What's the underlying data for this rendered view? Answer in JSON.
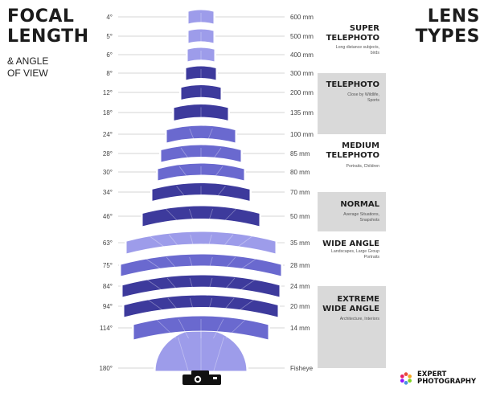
{
  "header": {
    "title_left_line1": "FOCAL",
    "title_left_line2": "LENGTH",
    "subtitle_line1": "& ANGLE",
    "subtitle_line2": "OF VIEW",
    "title_right_line1": "LENS",
    "title_right_line2": "TYPES"
  },
  "rows": [
    {
      "angle": "4°",
      "mm": "600 mm",
      "deg": 4
    },
    {
      "angle": "5°",
      "mm": "500 mm",
      "deg": 5
    },
    {
      "angle": "6°",
      "mm": "400 mm",
      "deg": 6
    },
    {
      "angle": "8°",
      "mm": "300 mm",
      "deg": 8
    },
    {
      "angle": "12°",
      "mm": "200 mm",
      "deg": 12
    },
    {
      "angle": "18°",
      "mm": "135 mm",
      "deg": 18
    },
    {
      "angle": "24°",
      "mm": "100 mm",
      "deg": 24
    },
    {
      "angle": "28°",
      "mm": "85 mm",
      "deg": 28
    },
    {
      "angle": "30°",
      "mm": "80 mm",
      "deg": 30
    },
    {
      "angle": "34°",
      "mm": "70 mm",
      "deg": 34
    },
    {
      "angle": "46°",
      "mm": "50 mm",
      "deg": 46
    },
    {
      "angle": "63°",
      "mm": "35 mm",
      "deg": 63
    },
    {
      "angle": "75°",
      "mm": "28 mm",
      "deg": 75
    },
    {
      "angle": "84°",
      "mm": "24 mm",
      "deg": 84
    },
    {
      "angle": "94°",
      "mm": "20 mm",
      "deg": 94
    },
    {
      "angle": "114°",
      "mm": "14 mm",
      "deg": 114
    },
    {
      "angle": "180°",
      "mm": "Fisheye",
      "deg": 180
    }
  ],
  "lens_types": [
    {
      "name_lines": [
        "SUPER",
        "TELEPHOTO"
      ],
      "desc_lines": [
        "Long distance subjects,",
        "birds"
      ],
      "shaded": false
    },
    {
      "name_lines": [
        "TELEPHOTO"
      ],
      "desc_lines": [
        "Close by Wildlife,",
        "Sports"
      ],
      "shaded": true
    },
    {
      "name_lines": [
        "MEDIUM",
        "TELEPHOTO"
      ],
      "desc_lines": [
        "Portraits, Children"
      ],
      "shaded": false
    },
    {
      "name_lines": [
        "NORMAL"
      ],
      "desc_lines": [
        "Average Situations,",
        "Snapshots"
      ],
      "shaded": true
    },
    {
      "name_lines": [
        "WIDE ANGLE"
      ],
      "desc_lines": [
        "Landscapes, Large Group",
        "Portraits"
      ],
      "shaded": false
    },
    {
      "name_lines": [
        "EXTREME",
        "WIDE ANGLE"
      ],
      "desc_lines": [
        "Architecture, Interiors"
      ],
      "shaded": true
    }
  ],
  "icons": {
    "camera": "camera-icon",
    "brand_logo": "expert-photography-logo"
  },
  "brand": {
    "line1": "EXPERT",
    "line2": "PHOTOGRAPHY"
  },
  "colors": {
    "dark_band": "#3d3a9c",
    "mid_band": "#6a69cf",
    "light_band": "#9d9cea",
    "shade_panel": "#d9d9d9"
  }
}
